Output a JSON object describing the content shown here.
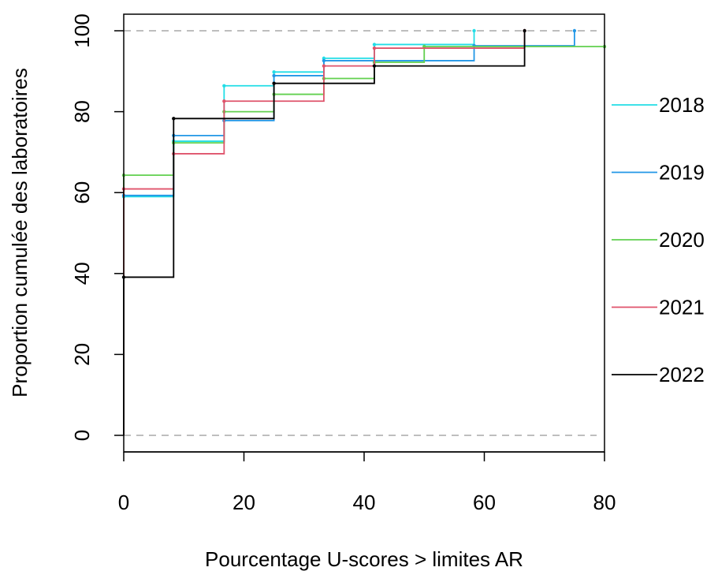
{
  "chart_data": {
    "type": "line",
    "step": true,
    "title": "",
    "xlabel": "Pourcentage U-scores > limites AR",
    "ylabel": "Proportion cumulée des laboratoires",
    "xlim": [
      0,
      80
    ],
    "ylim": [
      0,
      100
    ],
    "xticks": [
      0,
      20,
      40,
      60,
      80
    ],
    "yticks": [
      0,
      20,
      40,
      60,
      80,
      100
    ],
    "xtick_labels": [
      "0",
      "20",
      "40",
      "60",
      "80"
    ],
    "ytick_labels": [
      "0",
      "20",
      "40",
      "60",
      "80",
      "100"
    ],
    "reference_lines": [
      {
        "y": 0,
        "style": "dashed",
        "color": "#BEBEBE"
      },
      {
        "y": 100,
        "style": "dashed",
        "color": "#BEBEBE"
      }
    ],
    "grid": false,
    "legend_position": "right",
    "series": [
      {
        "name": "2018",
        "color": "#22DDE6",
        "points": [
          [
            0,
            59
          ],
          [
            8.3,
            72.7
          ],
          [
            16.7,
            86.4
          ],
          [
            25,
            89.8
          ],
          [
            33.3,
            93.2
          ],
          [
            41.7,
            96.6
          ],
          [
            58.3,
            100
          ]
        ]
      },
      {
        "name": "2019",
        "color": "#2297E6",
        "points": [
          [
            0,
            59.3
          ],
          [
            8.3,
            74.1
          ],
          [
            16.7,
            77.8
          ],
          [
            25,
            88.9
          ],
          [
            33.3,
            92.6
          ],
          [
            58.3,
            96.3
          ],
          [
            75,
            100
          ]
        ]
      },
      {
        "name": "2020",
        "color": "#61D04F",
        "points": [
          [
            0,
            64.3
          ],
          [
            8.3,
            72.3
          ],
          [
            16.7,
            80.0
          ],
          [
            25,
            84.3
          ],
          [
            33.3,
            88.2
          ],
          [
            41.7,
            92.2
          ],
          [
            50,
            96.1
          ],
          [
            80,
            96.1
          ]
        ]
      },
      {
        "name": "2021",
        "color": "#DF536B",
        "points": [
          [
            0,
            60.9
          ],
          [
            8.3,
            69.6
          ],
          [
            16.7,
            82.6
          ],
          [
            33.3,
            91.3
          ],
          [
            41.7,
            95.7
          ],
          [
            66.7,
            100
          ]
        ]
      },
      {
        "name": "2022",
        "color": "#000000",
        "points": [
          [
            0,
            39.1
          ],
          [
            8.3,
            78.3
          ],
          [
            25,
            87.0
          ],
          [
            41.7,
            91.3
          ],
          [
            66.7,
            100
          ]
        ]
      }
    ]
  }
}
